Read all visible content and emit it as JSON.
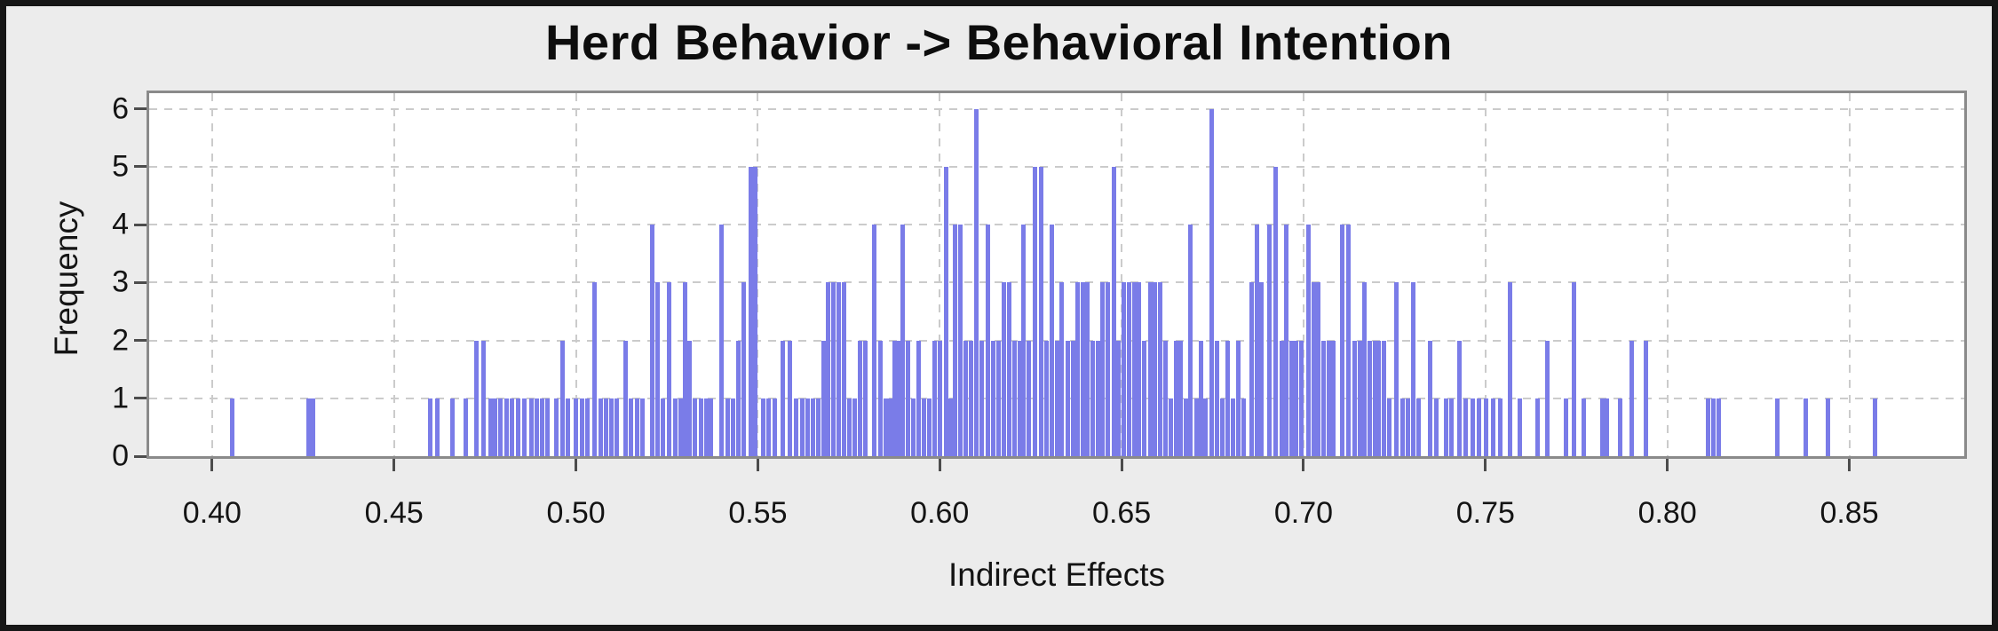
{
  "window": {
    "background_color": "#ececec",
    "frame_color": "#161616"
  },
  "chart_data": {
    "type": "bar",
    "title": "Herd Behavior -> Behavioral Intention",
    "xlabel": "Indirect Effects",
    "ylabel": "Frequency",
    "grid": true,
    "legend": "none",
    "plot_background": "#ffffff",
    "bar_color": "#7a7ce8",
    "gridline_color": "#cbcbcb",
    "axis_border_color": "#8a8a8a",
    "xlim": [
      0.3827,
      0.8816
    ],
    "ylim": [
      0,
      6.27
    ],
    "x_ticks": [
      {
        "v": 0.4,
        "label": "0.40"
      },
      {
        "v": 0.45,
        "label": "0.45"
      },
      {
        "v": 0.5,
        "label": "0.50"
      },
      {
        "v": 0.55,
        "label": "0.55"
      },
      {
        "v": 0.6,
        "label": "0.60"
      },
      {
        "v": 0.65,
        "label": "0.65"
      },
      {
        "v": 0.7,
        "label": "0.70"
      },
      {
        "v": 0.75,
        "label": "0.75"
      },
      {
        "v": 0.8,
        "label": "0.80"
      },
      {
        "v": 0.85,
        "label": "0.85"
      }
    ],
    "y_ticks": [
      {
        "v": 0,
        "label": "0"
      },
      {
        "v": 1,
        "label": "1"
      },
      {
        "v": 2,
        "label": "2"
      },
      {
        "v": 3,
        "label": "3"
      },
      {
        "v": 4,
        "label": "4"
      },
      {
        "v": 5,
        "label": "5"
      },
      {
        "v": 6,
        "label": "6"
      }
    ],
    "bars": [
      [
        0.4055,
        1
      ],
      [
        0.4265,
        1
      ],
      [
        0.4278,
        1
      ],
      [
        0.46,
        1
      ],
      [
        0.4618,
        1
      ],
      [
        0.466,
        1
      ],
      [
        0.4697,
        1
      ],
      [
        0.4726,
        2
      ],
      [
        0.4745,
        2
      ],
      [
        0.4765,
        1
      ],
      [
        0.4778,
        1
      ],
      [
        0.4792,
        1
      ],
      [
        0.481,
        1
      ],
      [
        0.4825,
        1
      ],
      [
        0.4842,
        1
      ],
      [
        0.4858,
        1
      ],
      [
        0.4878,
        1
      ],
      [
        0.4893,
        1
      ],
      [
        0.4908,
        1
      ],
      [
        0.4922,
        1
      ],
      [
        0.4945,
        1
      ],
      [
        0.4962,
        2
      ],
      [
        0.4978,
        1
      ],
      [
        0.5,
        1
      ],
      [
        0.5016,
        1
      ],
      [
        0.5032,
        1
      ],
      [
        0.5052,
        3
      ],
      [
        0.5068,
        1
      ],
      [
        0.5082,
        1
      ],
      [
        0.5097,
        1
      ],
      [
        0.5112,
        1
      ],
      [
        0.5136,
        2
      ],
      [
        0.5152,
        1
      ],
      [
        0.5168,
        1
      ],
      [
        0.5183,
        1
      ],
      [
        0.521,
        4
      ],
      [
        0.5224,
        3
      ],
      [
        0.524,
        1
      ],
      [
        0.5256,
        3
      ],
      [
        0.5272,
        1
      ],
      [
        0.5287,
        1
      ],
      [
        0.5299,
        3
      ],
      [
        0.5312,
        2
      ],
      [
        0.5328,
        1
      ],
      [
        0.5343,
        1
      ],
      [
        0.5358,
        1
      ],
      [
        0.5372,
        1
      ],
      [
        0.54,
        4
      ],
      [
        0.5416,
        1
      ],
      [
        0.5432,
        1
      ],
      [
        0.5447,
        2
      ],
      [
        0.5462,
        3
      ],
      [
        0.548,
        5
      ],
      [
        0.5494,
        5
      ],
      [
        0.5515,
        1
      ],
      [
        0.553,
        1
      ],
      [
        0.5546,
        1
      ],
      [
        0.5568,
        2
      ],
      [
        0.5588,
        2
      ],
      [
        0.5606,
        1
      ],
      [
        0.5622,
        1
      ],
      [
        0.5638,
        1
      ],
      [
        0.5652,
        1
      ],
      [
        0.5666,
        1
      ],
      [
        0.5682,
        2
      ],
      [
        0.5694,
        3
      ],
      [
        0.5708,
        3
      ],
      [
        0.5722,
        3
      ],
      [
        0.5736,
        3
      ],
      [
        0.5752,
        1
      ],
      [
        0.5766,
        1
      ],
      [
        0.5781,
        2
      ],
      [
        0.5796,
        2
      ],
      [
        0.582,
        4
      ],
      [
        0.5836,
        2
      ],
      [
        0.5851,
        1
      ],
      [
        0.5864,
        1
      ],
      [
        0.5877,
        2
      ],
      [
        0.5888,
        2
      ],
      [
        0.5898,
        4
      ],
      [
        0.5912,
        2
      ],
      [
        0.5927,
        1
      ],
      [
        0.5941,
        2
      ],
      [
        0.5956,
        1
      ],
      [
        0.5971,
        1
      ],
      [
        0.5986,
        2
      ],
      [
        0.6001,
        2
      ],
      [
        0.6017,
        5
      ],
      [
        0.6031,
        1
      ],
      [
        0.6042,
        4
      ],
      [
        0.6057,
        4
      ],
      [
        0.6071,
        2
      ],
      [
        0.6086,
        2
      ],
      [
        0.6101,
        6
      ],
      [
        0.6116,
        2
      ],
      [
        0.6133,
        4
      ],
      [
        0.6148,
        2
      ],
      [
        0.6162,
        2
      ],
      [
        0.6176,
        3
      ],
      [
        0.6191,
        3
      ],
      [
        0.6206,
        2
      ],
      [
        0.6219,
        2
      ],
      [
        0.6231,
        4
      ],
      [
        0.6244,
        2
      ],
      [
        0.6262,
        5
      ],
      [
        0.6278,
        5
      ],
      [
        0.6293,
        2
      ],
      [
        0.6308,
        4
      ],
      [
        0.6322,
        2
      ],
      [
        0.6336,
        3
      ],
      [
        0.6351,
        2
      ],
      [
        0.6366,
        2
      ],
      [
        0.6379,
        3
      ],
      [
        0.6393,
        3
      ],
      [
        0.6406,
        3
      ],
      [
        0.6421,
        2
      ],
      [
        0.6434,
        2
      ],
      [
        0.6448,
        3
      ],
      [
        0.6461,
        3
      ],
      [
        0.6478,
        5
      ],
      [
        0.6492,
        2
      ],
      [
        0.6506,
        3
      ],
      [
        0.6521,
        3
      ],
      [
        0.6534,
        3
      ],
      [
        0.6548,
        3
      ],
      [
        0.6563,
        2
      ],
      [
        0.6578,
        3
      ],
      [
        0.6592,
        3
      ],
      [
        0.6606,
        3
      ],
      [
        0.6621,
        2
      ],
      [
        0.6636,
        1
      ],
      [
        0.6649,
        2
      ],
      [
        0.6663,
        2
      ],
      [
        0.6676,
        1
      ],
      [
        0.669,
        4
      ],
      [
        0.6706,
        1
      ],
      [
        0.6719,
        2
      ],
      [
        0.6731,
        1
      ],
      [
        0.6747,
        6
      ],
      [
        0.6763,
        2
      ],
      [
        0.6776,
        1
      ],
      [
        0.6791,
        2
      ],
      [
        0.6806,
        1
      ],
      [
        0.6821,
        2
      ],
      [
        0.6836,
        1
      ],
      [
        0.6857,
        3
      ],
      [
        0.6871,
        4
      ],
      [
        0.6884,
        3
      ],
      [
        0.6906,
        4
      ],
      [
        0.6923,
        5
      ],
      [
        0.6941,
        2
      ],
      [
        0.6953,
        4
      ],
      [
        0.6966,
        2
      ],
      [
        0.6979,
        2
      ],
      [
        0.6994,
        2
      ],
      [
        0.7013,
        4
      ],
      [
        0.7028,
        3
      ],
      [
        0.7041,
        3
      ],
      [
        0.7056,
        2
      ],
      [
        0.7069,
        2
      ],
      [
        0.7081,
        2
      ],
      [
        0.7106,
        4
      ],
      [
        0.7123,
        4
      ],
      [
        0.7141,
        2
      ],
      [
        0.7156,
        2
      ],
      [
        0.7167,
        3
      ],
      [
        0.7181,
        2
      ],
      [
        0.7196,
        2
      ],
      [
        0.7207,
        2
      ],
      [
        0.7221,
        2
      ],
      [
        0.7236,
        1
      ],
      [
        0.7256,
        3
      ],
      [
        0.7271,
        1
      ],
      [
        0.7286,
        1
      ],
      [
        0.7301,
        3
      ],
      [
        0.7316,
        1
      ],
      [
        0.7347,
        2
      ],
      [
        0.7366,
        1
      ],
      [
        0.7391,
        1
      ],
      [
        0.7406,
        1
      ],
      [
        0.7428,
        2
      ],
      [
        0.7446,
        1
      ],
      [
        0.7466,
        1
      ],
      [
        0.7481,
        1
      ],
      [
        0.7501,
        1
      ],
      [
        0.7521,
        1
      ],
      [
        0.7541,
        1
      ],
      [
        0.7567,
        3
      ],
      [
        0.7595,
        1
      ],
      [
        0.7644,
        1
      ],
      [
        0.7671,
        2
      ],
      [
        0.7721,
        1
      ],
      [
        0.7744,
        3
      ],
      [
        0.7769,
        1
      ],
      [
        0.7821,
        1
      ],
      [
        0.7834,
        1
      ],
      [
        0.7871,
        1
      ],
      [
        0.7901,
        2
      ],
      [
        0.7941,
        2
      ],
      [
        0.8111,
        1
      ],
      [
        0.8126,
        1
      ],
      [
        0.8141,
        1
      ],
      [
        0.8301,
        1
      ],
      [
        0.8381,
        1
      ],
      [
        0.8441,
        1
      ],
      [
        0.8571,
        1
      ]
    ]
  }
}
